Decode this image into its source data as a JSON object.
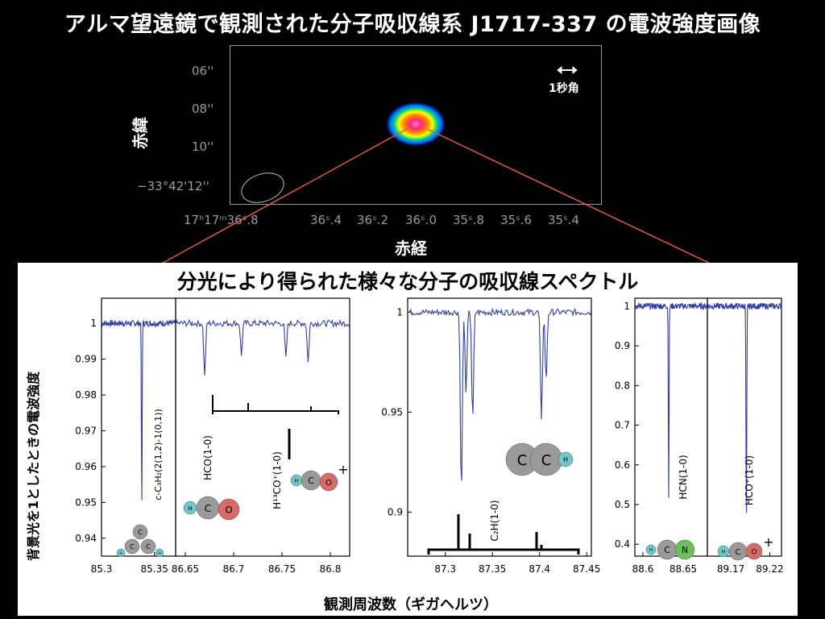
{
  "title": "アルマ望遠鏡で観測された分子吸収線系 J1717-337 の電波強度画像",
  "map": {
    "dec_ticks": [
      "06''",
      "08''",
      "10''",
      "−33°42'12''"
    ],
    "dec_label": "赤緯",
    "ra_ticks": [
      "17ʰ17ᵐ36ˢ.8",
      "36ˢ.4",
      "36ˢ.2",
      "36ˢ.0",
      "35ˢ.8",
      "35ˢ.6",
      "35ˢ.4"
    ],
    "ra_label": "赤経",
    "scalebar_label": "1秒角"
  },
  "spectra_title": "分光により得られた様々な分子の吸収線スペクトル",
  "y_axis_label": "背景光を1としたときの電波強度",
  "x_axis_label": "観測周波数（ギガヘルツ）",
  "chart_data": [
    {
      "type": "line",
      "panel": "c-C3H2",
      "xlim": [
        85.3,
        85.37
      ],
      "ylim": [
        0.935,
        1.007
      ],
      "xticks": [
        "85.3",
        "85.35"
      ],
      "yticks": [
        "1",
        "0.99",
        "0.98",
        "0.97",
        "0.96",
        "0.95",
        "0.94"
      ],
      "absorption_lines": [
        {
          "freq": 85.338,
          "depth_to": 0.948
        }
      ],
      "molecule_label": "c-C₃H₂(2(1,2)-1(0,1))"
    },
    {
      "type": "line",
      "panel": "HCO / H13CO+",
      "xlim": [
        86.64,
        86.82
      ],
      "ylim": [
        0.935,
        1.007
      ],
      "xticks": [
        "86.65",
        "86.7",
        "86.75",
        "86.8"
      ],
      "absorption_lines": [
        {
          "freq": 86.67,
          "depth_to": 0.985
        },
        {
          "freq": 86.708,
          "depth_to": 0.991
        },
        {
          "freq": 86.777,
          "depth_to": 0.989
        },
        {
          "freq": 86.754,
          "depth_to": 0.99
        }
      ],
      "molecule_labels": [
        "HCO(1-0)",
        "H¹³CO⁺(1-0)"
      ]
    },
    {
      "type": "line",
      "panel": "C2H",
      "xlim": [
        87.26,
        87.455
      ],
      "ylim": [
        0.878,
        1.007
      ],
      "xticks": [
        "87.3",
        "87.35",
        "87.4",
        "87.45"
      ],
      "yticks": [
        "1",
        "0.95",
        "0.9"
      ],
      "absorption_lines": [
        {
          "freq": 87.317,
          "depth_to": 0.907
        },
        {
          "freq": 87.322,
          "depth_to": 0.96
        },
        {
          "freq": 87.329,
          "depth_to": 0.945
        },
        {
          "freq": 87.402,
          "depth_to": 0.945
        },
        {
          "freq": 87.407,
          "depth_to": 0.965
        }
      ],
      "molecule_label": "C₂H(1-0)"
    },
    {
      "type": "line",
      "panel": "HCN",
      "xlim": [
        88.59,
        88.68
      ],
      "ylim": [
        0.37,
        1.02
      ],
      "xticks": [
        "88.6",
        "88.65"
      ],
      "yticks": [
        "1",
        "0.9",
        "0.8",
        "0.7",
        "0.6",
        "0.5",
        "0.4"
      ],
      "absorption_lines": [
        {
          "freq": 88.632,
          "depth_to": 0.525
        }
      ],
      "molecule_label": "HCN(1-0)"
    },
    {
      "type": "line",
      "panel": "HCO+",
      "xlim": [
        89.14,
        89.235
      ],
      "ylim": [
        0.37,
        1.02
      ],
      "xticks": [
        "89.17",
        "89.22"
      ],
      "absorption_lines": [
        {
          "freq": 89.19,
          "depth_to": 0.45
        }
      ],
      "molecule_label": "HCO⁺(1-0)"
    }
  ],
  "colors": {
    "line": "#2f3f9f",
    "connector": "#e05a4a",
    "H": "#6fc8c8",
    "C": "#9a9a9a",
    "O": "#d86a6a",
    "N": "#6cbf5a"
  }
}
